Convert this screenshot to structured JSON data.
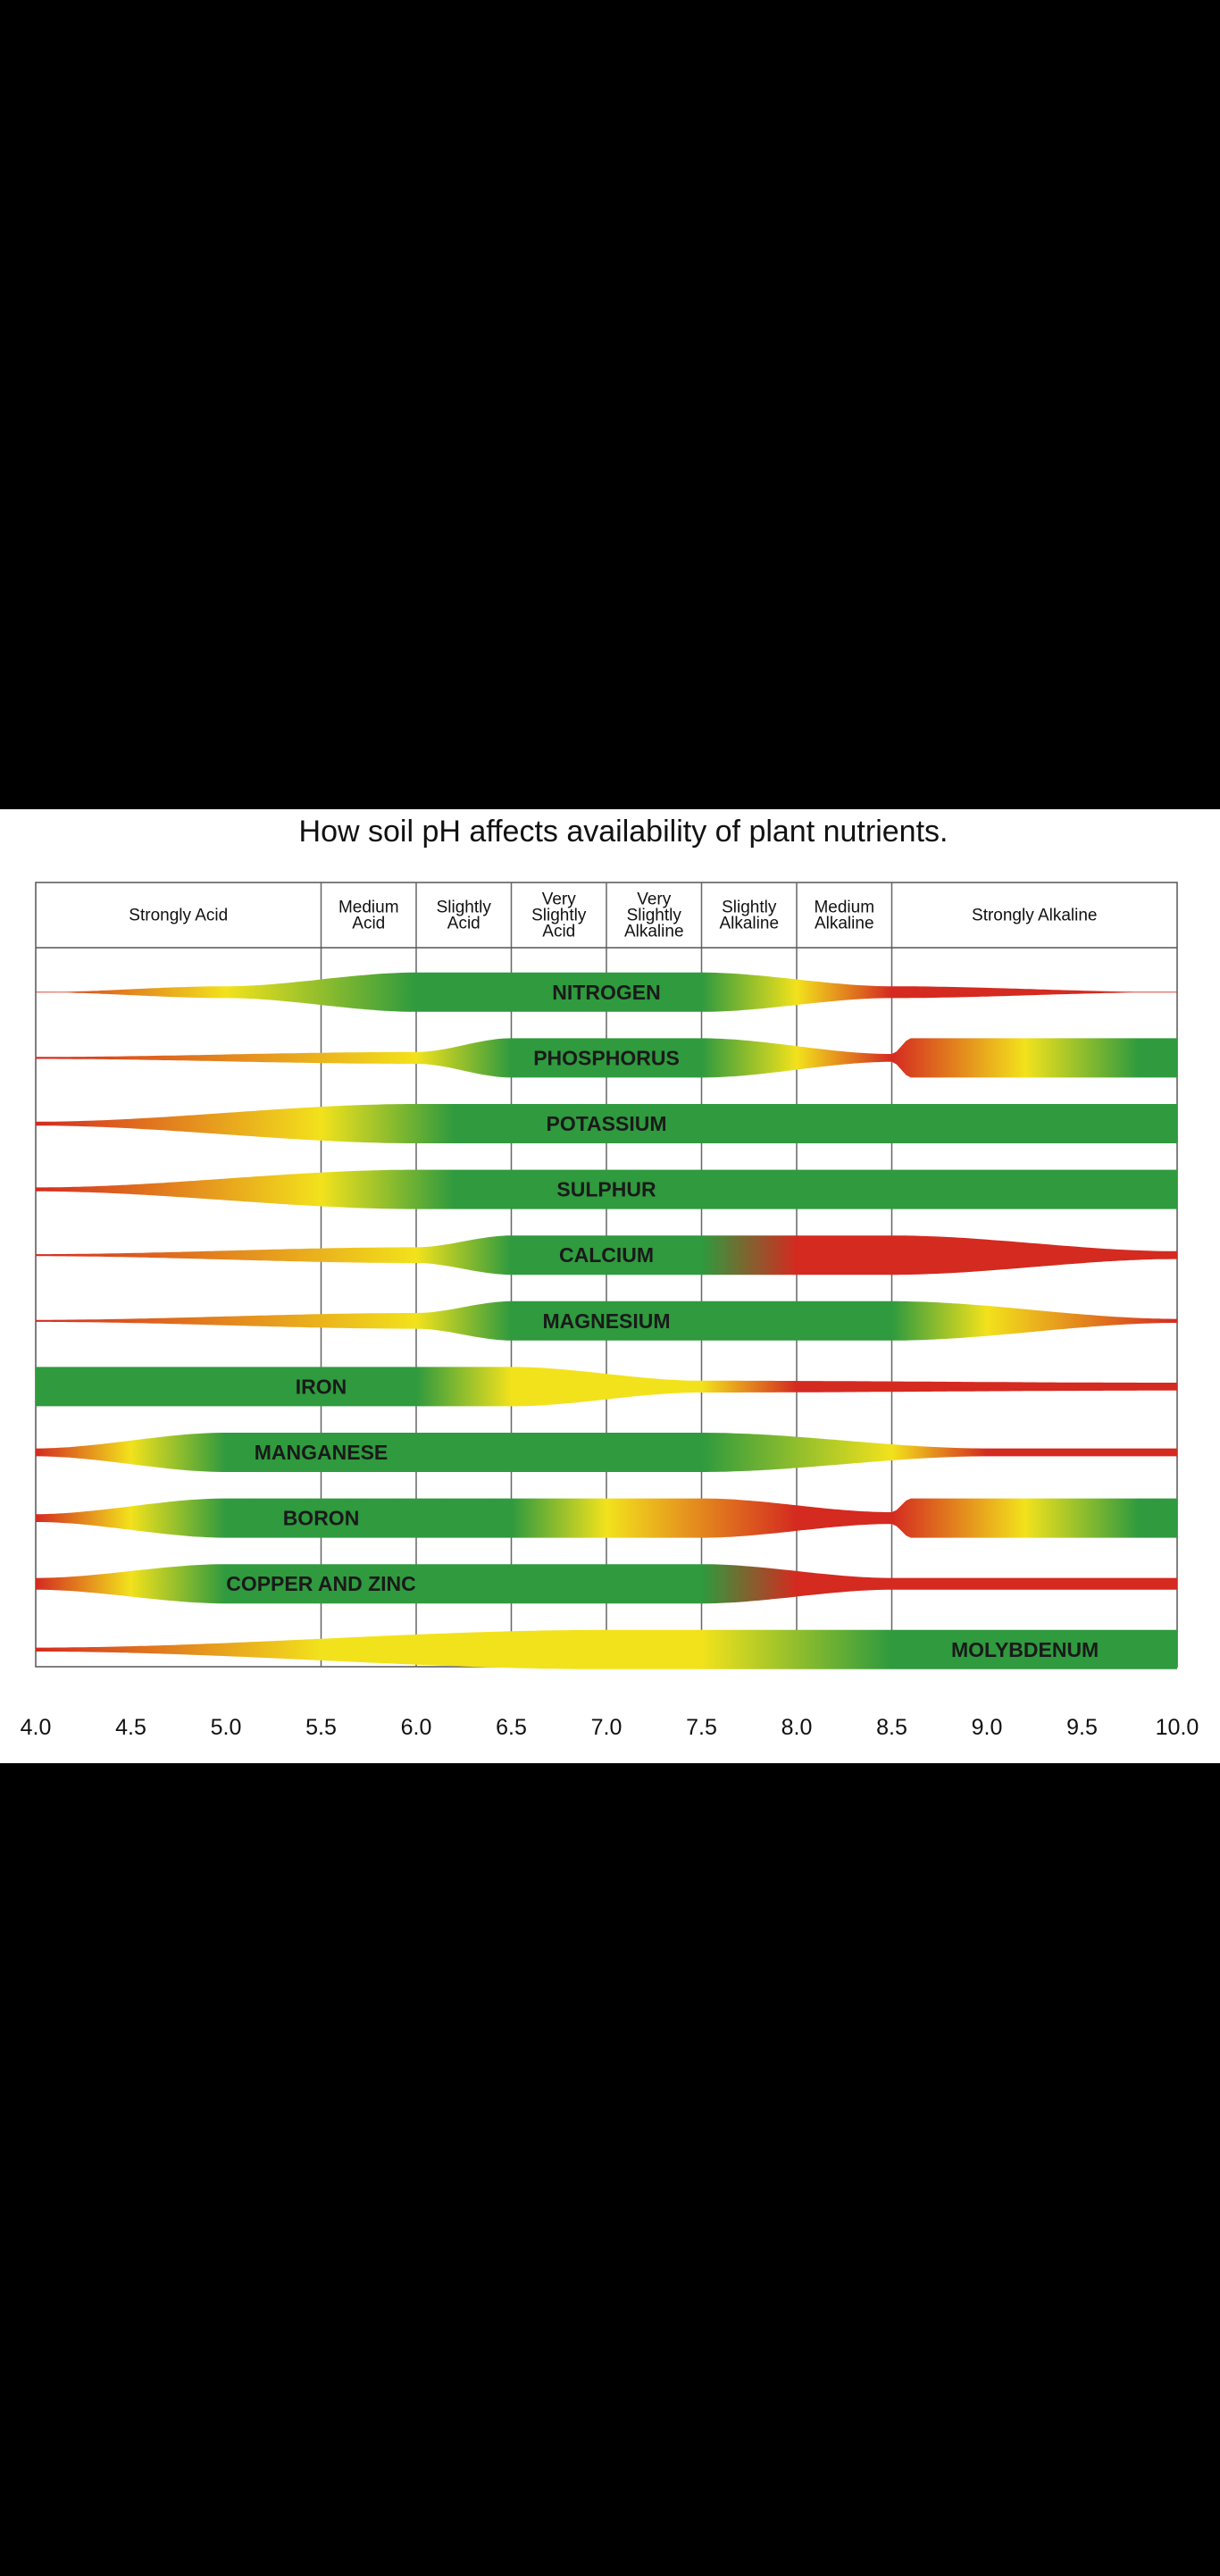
{
  "title": "How soil pH affects availability of plant nutrients.",
  "colors": {
    "red": "#d42a20",
    "yellow": "#f2e21c",
    "green": "#2f9a3e",
    "background": "#000000"
  },
  "chart_data": {
    "type": "band-chart",
    "xlabel": "",
    "xlim": [
      4.0,
      10.0
    ],
    "x_ticks": [
      "4.0",
      "4.5",
      "5.0",
      "5.5",
      "6.0",
      "6.5",
      "7.0",
      "7.5",
      "8.0",
      "8.5",
      "9.0",
      "9.5",
      "10.0"
    ],
    "ph_zones": [
      {
        "lines": [
          "Strongly Acid"
        ],
        "from": 4.0,
        "to": 5.5
      },
      {
        "lines": [
          "Medium",
          "Acid"
        ],
        "from": 5.5,
        "to": 6.0
      },
      {
        "lines": [
          "Slightly",
          "Acid"
        ],
        "from": 6.0,
        "to": 6.5
      },
      {
        "lines": [
          "Very",
          "Slightly",
          "Acid"
        ],
        "from": 6.5,
        "to": 7.0
      },
      {
        "lines": [
          "Very",
          "Slightly",
          "Alkaline"
        ],
        "from": 7.0,
        "to": 7.5
      },
      {
        "lines": [
          "Slightly",
          "Alkaline"
        ],
        "from": 7.5,
        "to": 8.0
      },
      {
        "lines": [
          "Medium",
          "Alkaline"
        ],
        "from": 8.0,
        "to": 8.5
      },
      {
        "lines": [
          "Strongly Alkaline"
        ],
        "from": 8.5,
        "to": 10.0
      }
    ],
    "nutrients": [
      {
        "name": "NITROGEN",
        "label_ph": 7.0,
        "width": [
          [
            4.0,
            0
          ],
          [
            5.0,
            0.3
          ],
          [
            6.0,
            1
          ],
          [
            7.5,
            1
          ],
          [
            8.5,
            0.3
          ],
          [
            10.0,
            0
          ]
        ],
        "color": [
          [
            4.0,
            "red"
          ],
          [
            5.0,
            "yellow"
          ],
          [
            6.0,
            "green"
          ],
          [
            7.5,
            "green"
          ],
          [
            8.0,
            "yellow"
          ],
          [
            8.5,
            "red"
          ],
          [
            10.0,
            "red"
          ]
        ]
      },
      {
        "name": "PHOSPHORUS",
        "label_ph": 7.0,
        "width": [
          [
            4.0,
            0.05
          ],
          [
            6.0,
            0.3
          ],
          [
            6.5,
            1
          ],
          [
            7.5,
            1
          ],
          [
            8.5,
            0.2
          ],
          [
            8.6,
            1
          ],
          [
            10.0,
            1
          ]
        ],
        "color": [
          [
            4.0,
            "red"
          ],
          [
            6.0,
            "yellow"
          ],
          [
            6.5,
            "green"
          ],
          [
            7.5,
            "green"
          ],
          [
            8.0,
            "yellow"
          ],
          [
            8.5,
            "red"
          ],
          [
            9.2,
            "yellow"
          ],
          [
            9.8,
            "green"
          ],
          [
            10.0,
            "green"
          ]
        ]
      },
      {
        "name": "POTASSIUM",
        "label_ph": 7.0,
        "width": [
          [
            4.0,
            0.1
          ],
          [
            6.0,
            1
          ],
          [
            10.0,
            1
          ]
        ],
        "color": [
          [
            4.0,
            "red"
          ],
          [
            5.5,
            "yellow"
          ],
          [
            6.2,
            "green"
          ],
          [
            10.0,
            "green"
          ]
        ]
      },
      {
        "name": "SULPHUR",
        "label_ph": 7.0,
        "width": [
          [
            4.0,
            0.1
          ],
          [
            6.0,
            1
          ],
          [
            10.0,
            1
          ]
        ],
        "color": [
          [
            4.0,
            "red"
          ],
          [
            5.5,
            "yellow"
          ],
          [
            6.2,
            "green"
          ],
          [
            10.0,
            "green"
          ]
        ]
      },
      {
        "name": "CALCIUM",
        "label_ph": 7.0,
        "width": [
          [
            4.0,
            0.05
          ],
          [
            6.0,
            0.4
          ],
          [
            6.5,
            1
          ],
          [
            8.5,
            1
          ],
          [
            10.0,
            0.2
          ]
        ],
        "color": [
          [
            4.0,
            "red"
          ],
          [
            6.0,
            "yellow"
          ],
          [
            6.5,
            "green"
          ],
          [
            7.5,
            "green"
          ],
          [
            8.0,
            "red"
          ],
          [
            10.0,
            "red"
          ]
        ]
      },
      {
        "name": "MAGNESIUM",
        "label_ph": 7.0,
        "width": [
          [
            4.0,
            0.05
          ],
          [
            6.0,
            0.4
          ],
          [
            6.5,
            1
          ],
          [
            8.5,
            1
          ],
          [
            10.0,
            0.1
          ]
        ],
        "color": [
          [
            4.0,
            "red"
          ],
          [
            6.0,
            "yellow"
          ],
          [
            6.5,
            "green"
          ],
          [
            8.5,
            "green"
          ],
          [
            9.0,
            "yellow"
          ],
          [
            10.0,
            "red"
          ]
        ]
      },
      {
        "name": "IRON",
        "label_ph": 5.5,
        "width": [
          [
            4.0,
            1
          ],
          [
            6.5,
            1
          ],
          [
            7.5,
            0.3
          ],
          [
            10.0,
            0.2
          ]
        ],
        "color": [
          [
            4.0,
            "green"
          ],
          [
            6.0,
            "green"
          ],
          [
            6.5,
            "yellow"
          ],
          [
            7.5,
            "yellow"
          ],
          [
            8.0,
            "red"
          ],
          [
            10.0,
            "red"
          ]
        ]
      },
      {
        "name": "MANGANESE",
        "label_ph": 5.5,
        "width": [
          [
            4.0,
            0.2
          ],
          [
            5.0,
            1
          ],
          [
            7.5,
            1
          ],
          [
            9.0,
            0.2
          ],
          [
            10.0,
            0.2
          ]
        ],
        "color": [
          [
            4.0,
            "red"
          ],
          [
            4.5,
            "yellow"
          ],
          [
            5.0,
            "green"
          ],
          [
            7.5,
            "green"
          ],
          [
            8.5,
            "yellow"
          ],
          [
            9.0,
            "red"
          ],
          [
            10.0,
            "red"
          ]
        ]
      },
      {
        "name": "BORON",
        "label_ph": 5.5,
        "width": [
          [
            4.0,
            0.2
          ],
          [
            5.0,
            1
          ],
          [
            7.5,
            1
          ],
          [
            8.5,
            0.3
          ],
          [
            8.6,
            1
          ],
          [
            10.0,
            1
          ]
        ],
        "color": [
          [
            4.0,
            "red"
          ],
          [
            4.5,
            "yellow"
          ],
          [
            5.0,
            "green"
          ],
          [
            6.5,
            "green"
          ],
          [
            7.0,
            "yellow"
          ],
          [
            8.0,
            "red"
          ],
          [
            8.5,
            "red"
          ],
          [
            9.2,
            "yellow"
          ],
          [
            9.8,
            "green"
          ],
          [
            10.0,
            "green"
          ]
        ]
      },
      {
        "name": "COPPER AND ZINC",
        "label_ph": 5.5,
        "width": [
          [
            4.0,
            0.3
          ],
          [
            5.0,
            1
          ],
          [
            7.5,
            1
          ],
          [
            8.5,
            0.3
          ],
          [
            10.0,
            0.3
          ]
        ],
        "color": [
          [
            4.0,
            "red"
          ],
          [
            4.5,
            "yellow"
          ],
          [
            5.0,
            "green"
          ],
          [
            7.5,
            "green"
          ],
          [
            8.0,
            "red"
          ],
          [
            10.0,
            "red"
          ]
        ]
      },
      {
        "name": "MOLYBDENUM",
        "label_ph": 9.2,
        "width": [
          [
            4.0,
            0.1
          ],
          [
            7.0,
            1
          ],
          [
            10.0,
            1
          ]
        ],
        "color": [
          [
            4.0,
            "red"
          ],
          [
            5.5,
            "yellow"
          ],
          [
            7.5,
            "yellow"
          ],
          [
            8.5,
            "green"
          ],
          [
            10.0,
            "green"
          ]
        ]
      }
    ]
  }
}
